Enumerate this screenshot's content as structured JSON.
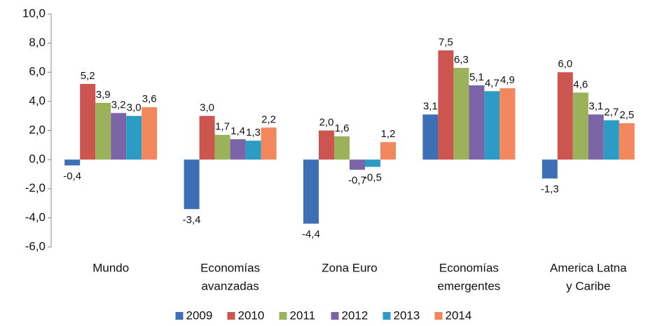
{
  "chart_data": {
    "type": "bar",
    "categories": [
      [
        "Mundo"
      ],
      [
        "Economías",
        "avanzadas"
      ],
      [
        "Zona Euro"
      ],
      [
        "Economías",
        "emergentes"
      ],
      [
        "America Latna",
        "y Caribe"
      ]
    ],
    "series": [
      {
        "name": "2009",
        "color": "#3c6fb5",
        "values": [
          -0.4,
          -3.4,
          -4.4,
          3.1,
          -1.3
        ],
        "value_labels": [
          "-0,4",
          "-3,4",
          "-4,4",
          "3,1",
          "-1,3"
        ]
      },
      {
        "name": "2010",
        "color": "#cd5550",
        "values": [
          5.2,
          3.0,
          2.0,
          7.5,
          6.0
        ],
        "value_labels": [
          "5,2",
          "3,0",
          "2,0",
          "7,5",
          "6,0"
        ]
      },
      {
        "name": "2011",
        "color": "#9bb25a",
        "values": [
          3.9,
          1.7,
          1.6,
          6.3,
          4.6
        ],
        "value_labels": [
          "3,9",
          "1,7",
          "1,6",
          "6,3",
          "4,6"
        ]
      },
      {
        "name": "2012",
        "color": "#7b65a6",
        "values": [
          3.2,
          1.4,
          -0.7,
          5.1,
          3.1
        ],
        "value_labels": [
          "3,2",
          "1,4",
          "-0,7",
          "5,1",
          "3,1"
        ]
      },
      {
        "name": "2013",
        "color": "#2d9cc4",
        "values": [
          3.0,
          1.3,
          -0.5,
          4.7,
          2.7
        ],
        "value_labels": [
          "3,0",
          "1,3",
          "-0,5",
          "4,7",
          "2,7"
        ]
      },
      {
        "name": "2014",
        "color": "#f2875e",
        "values": [
          3.6,
          2.2,
          1.2,
          4.9,
          2.5
        ],
        "value_labels": [
          "3,6",
          "2,2",
          "1,2",
          "4,9",
          "2,5"
        ]
      }
    ],
    "ylim": [
      -6,
      10
    ],
    "yticks": [
      {
        "value": -6,
        "label": "-6,0"
      },
      {
        "value": -4,
        "label": "-4,0"
      },
      {
        "value": -2,
        "label": "-2,0"
      },
      {
        "value": 0,
        "label": "0,0"
      },
      {
        "value": 2,
        "label": "2,0"
      },
      {
        "value": 4,
        "label": "4,0"
      },
      {
        "value": 6,
        "label": "6,0"
      },
      {
        "value": 8,
        "label": "8,0"
      },
      {
        "value": 10,
        "label": "10,0"
      }
    ],
    "grid": false,
    "legend": "bottom"
  }
}
